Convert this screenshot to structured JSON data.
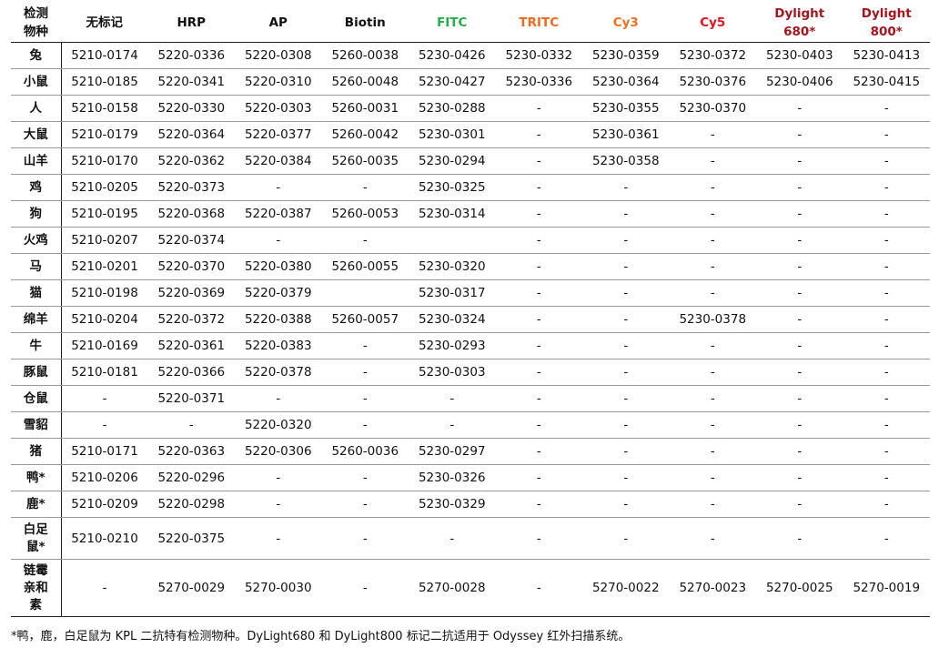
{
  "header": {
    "species_label": [
      "检测",
      "物种"
    ],
    "columns": [
      {
        "label": "无标记",
        "color": "#111111"
      },
      {
        "label": "HRP",
        "color": "#111111"
      },
      {
        "label": "AP",
        "color": "#111111"
      },
      {
        "label": "Biotin",
        "color": "#111111"
      },
      {
        "label": "FITC",
        "color": "#22b04b"
      },
      {
        "label": "TRITC",
        "color": "#ee6a1c"
      },
      {
        "label": "Cy3",
        "color": "#f07020"
      },
      {
        "label": "Cy5",
        "color": "#e8101c"
      },
      {
        "label": "Dylight 680*",
        "color": "#a8141c"
      },
      {
        "label": "Dylight 800*",
        "color": "#a8141c"
      }
    ]
  },
  "rows": [
    {
      "species": "兔",
      "values": [
        "5210-0174",
        "5220-0336",
        "5220-0308",
        "5260-0038",
        "5230-0426",
        "5230-0332",
        "5230-0359",
        "5230-0372",
        "5230-0403",
        "5230-0413"
      ]
    },
    {
      "species": "小鼠",
      "values": [
        "5210-0185",
        "5220-0341",
        "5220-0310",
        "5260-0048",
        "5230-0427",
        "5230-0336",
        "5230-0364",
        "5230-0376",
        "5230-0406",
        "5230-0415"
      ]
    },
    {
      "species": "人",
      "values": [
        "5210-0158",
        "5220-0330",
        "5220-0303",
        "5260-0031",
        "5230-0288",
        "-",
        "5230-0355",
        "5230-0370",
        "-",
        "-"
      ]
    },
    {
      "species": "大鼠",
      "values": [
        "5210-0179",
        "5220-0364",
        "5220-0377",
        "5260-0042",
        "5230-0301",
        "-",
        "5230-0361",
        "-",
        "-",
        "-"
      ]
    },
    {
      "species": "山羊",
      "values": [
        "5210-0170",
        "5220-0362",
        "5220-0384",
        "5260-0035",
        "5230-0294",
        "-",
        "5230-0358",
        "-",
        "-",
        "-"
      ]
    },
    {
      "species": "鸡",
      "values": [
        "5210-0205",
        "5220-0373",
        "-",
        "-",
        "5230-0325",
        "-",
        "-",
        "-",
        "-",
        "-"
      ]
    },
    {
      "species": "狗",
      "values": [
        "5210-0195",
        "5220-0368",
        "5220-0387",
        "5260-0053",
        "5230-0314",
        "-",
        "-",
        "-",
        "-",
        "-"
      ]
    },
    {
      "species": "火鸡",
      "values": [
        "5210-0207",
        "5220-0374",
        "-",
        "-",
        "",
        "-",
        "-",
        "-",
        "-",
        "-"
      ]
    },
    {
      "species": "马",
      "values": [
        "5210-0201",
        "5220-0370",
        "5220-0380",
        "5260-0055",
        "5230-0320",
        "-",
        "-",
        "-",
        "-",
        "-"
      ]
    },
    {
      "species": "猫",
      "values": [
        "5210-0198",
        "5220-0369",
        "5220-0379",
        "",
        "5230-0317",
        "-",
        "-",
        "-",
        "-",
        "-"
      ]
    },
    {
      "species": "绵羊",
      "values": [
        "5210-0204",
        "5220-0372",
        "5220-0388",
        "5260-0057",
        "5230-0324",
        "-",
        "-",
        "5230-0378",
        "-",
        "-"
      ]
    },
    {
      "species": "牛",
      "values": [
        "5210-0169",
        "5220-0361",
        "5220-0383",
        "-",
        "5230-0293",
        "-",
        "-",
        "-",
        "-",
        "-"
      ]
    },
    {
      "species": "豚鼠",
      "values": [
        "5210-0181",
        "5220-0366",
        "5220-0378",
        "-",
        "5230-0303",
        "-",
        "-",
        "-",
        "-",
        "-"
      ]
    },
    {
      "species": "仓鼠",
      "values": [
        "-",
        "5220-0371",
        "-",
        "-",
        "-",
        "-",
        "-",
        "-",
        "-",
        "-"
      ]
    },
    {
      "species": "雪貂",
      "values": [
        "-",
        "-",
        "5220-0320",
        "-",
        "-",
        "-",
        "-",
        "-",
        "-",
        "-"
      ]
    },
    {
      "species": "猪",
      "values": [
        "5210-0171",
        "5220-0363",
        "5220-0306",
        "5260-0036",
        "5230-0297",
        "-",
        "-",
        "-",
        "-",
        "-"
      ]
    },
    {
      "species": "鸭*",
      "values": [
        "5210-0206",
        "5220-0296",
        "-",
        "-",
        "5230-0326",
        "-",
        "-",
        "-",
        "-",
        "-"
      ]
    },
    {
      "species": "鹿*",
      "values": [
        "5210-0209",
        "5220-0298",
        "-",
        "-",
        "5230-0329",
        "-",
        "-",
        "-",
        "-",
        "-"
      ]
    },
    {
      "species": "白足鼠*",
      "values": [
        "5210-0210",
        "5220-0375",
        "-",
        "-",
        "-",
        "-",
        "-",
        "-",
        "-",
        "-"
      ]
    },
    {
      "species": "链霉亲和素",
      "values": [
        "-",
        "5270-0029",
        "5270-0030",
        "-",
        "5270-0028",
        "-",
        "5270-0022",
        "5270-0023",
        "5270-0025",
        "5270-0019"
      ]
    }
  ],
  "footnote": "*鸭，鹿，白足鼠为 KPL 二抗特有检测物种。DyLight680 和 DyLight800 标记二抗适用于 Odyssey 红外扫描系统。"
}
